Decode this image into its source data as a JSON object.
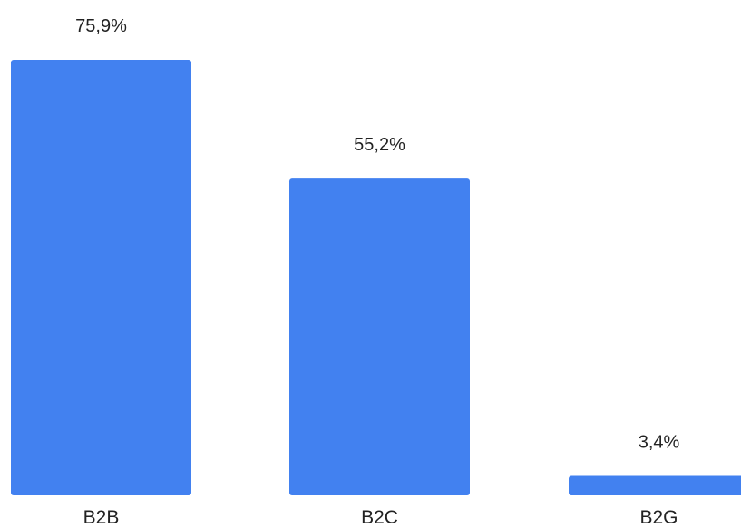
{
  "chart_data": {
    "type": "bar",
    "categories": [
      "B2B",
      "B2C",
      "B2G"
    ],
    "values": [
      75.9,
      55.2,
      3.4
    ],
    "value_labels": [
      "75,9%",
      "55,2%",
      "3,4%"
    ],
    "ylim": [
      0,
      75.9
    ],
    "grid": false,
    "legend": "none",
    "bar_color": "#4281f0"
  }
}
